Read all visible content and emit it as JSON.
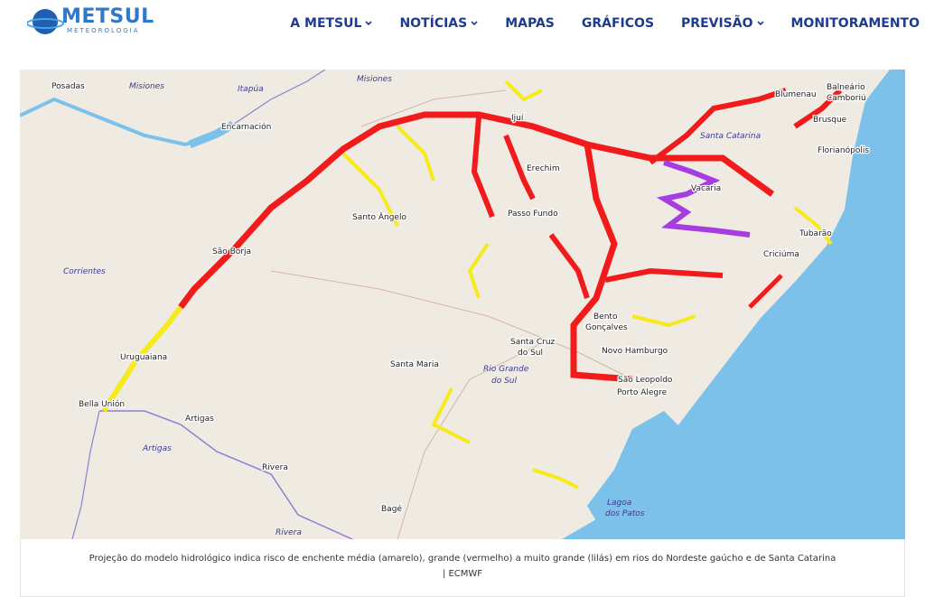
{
  "header": {
    "logo": "METSUL",
    "logo_sub": "METEOROLOGIA",
    "nav": [
      "A METSUL",
      "NOTÍCIAS",
      "MAPAS",
      "GRÁFICOS",
      "PREVISÃO",
      "MONITORAMENTO"
    ]
  },
  "map": {
    "cities": [
      "Posadas",
      "Encarnación",
      "Santo Ângelo",
      "São Borja",
      "Uruguaiana",
      "Bella Unión",
      "Artigas",
      "Rivera",
      "Bagé",
      "Santa Maria",
      "Santa Cruz",
      "do Sul",
      "Passo Fundo",
      "Erechim",
      "Ijuí",
      "Vacaria",
      "Bento",
      "Gonçalves",
      "Novo Hamburgo",
      "São Leopoldo",
      "Porto Alegre",
      "Criciúma",
      "Tubarão",
      "Blumenau",
      "Balneário",
      "Camboriú",
      "Brusque",
      "Florianópolis"
    ],
    "regions": [
      "Misiones",
      "Itapúa",
      "Misiones",
      "Corrientes",
      "Artigas",
      "Rivera",
      "Santa Catarina",
      "Rio Grande",
      "do Sul",
      "Lagoa",
      "dos Patos"
    ]
  },
  "caption": {
    "text": "Projeção do modelo hidrológico indica risco de enchente média (amarelo), grande (vermelho) a muito grande (lilás) em rios do Nordeste gaúcho e de Santa Catarina",
    "credit": "| ECMWF"
  }
}
